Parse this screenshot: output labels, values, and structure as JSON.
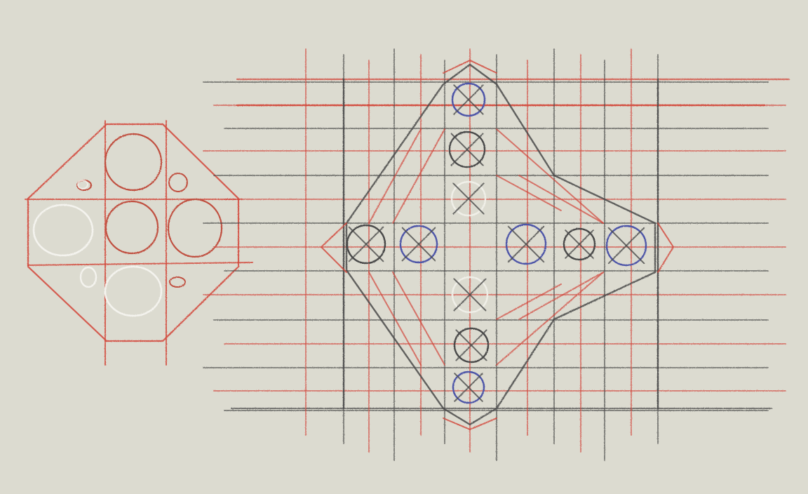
{
  "canvas": {
    "background": "#dcdbd0",
    "palette": {
      "red_pencil": "#d2463a",
      "dark_pencil": "#4a4a4a",
      "blue_pencil": "#4e55a8",
      "white_pencil": "#f4f3ee"
    }
  },
  "drawings": [
    {
      "name": "octagon-circles-sketch",
      "description_hidden": true
    },
    {
      "name": "diamond-grid-sketch",
      "description_hidden": true
    }
  ]
}
